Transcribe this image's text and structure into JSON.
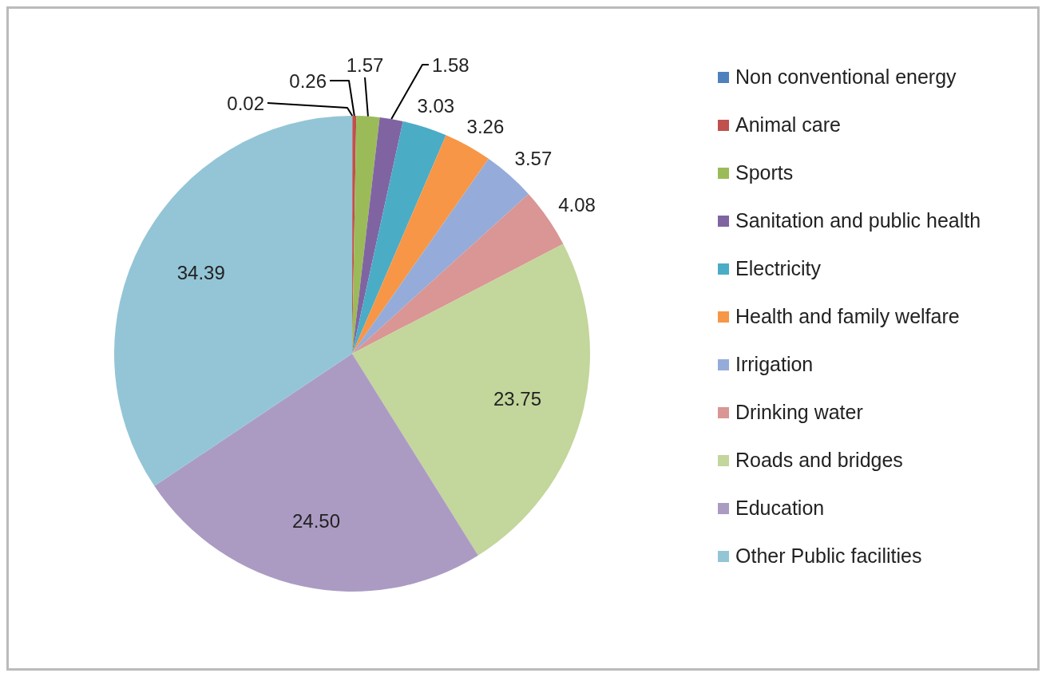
{
  "chart_data": {
    "type": "pie",
    "categories": [
      "Non conventional energy",
      "Animal care",
      "Sports",
      "Sanitation and public health",
      "Electricity",
      "Health and family welfare",
      "Irrigation",
      "Drinking water",
      "Roads and bridges",
      "Education",
      "Other Public facilities"
    ],
    "values": [
      0.02,
      0.26,
      1.57,
      1.58,
      3.03,
      3.26,
      3.57,
      4.08,
      23.75,
      24.5,
      34.39
    ],
    "value_labels": [
      "0.02",
      "0.26",
      "1.57",
      "1.58",
      "3.03",
      "3.26",
      "3.57",
      "4.08",
      "23.75",
      "24.50",
      "34.39"
    ],
    "colors": [
      "#4f81bd",
      "#c0504d",
      "#9bbb59",
      "#8064a2",
      "#4bacc6",
      "#f79646",
      "#95abd9",
      "#d99694",
      "#c3d69b",
      "#ab9bc3",
      "#93c5d6"
    ],
    "legend": "right"
  }
}
